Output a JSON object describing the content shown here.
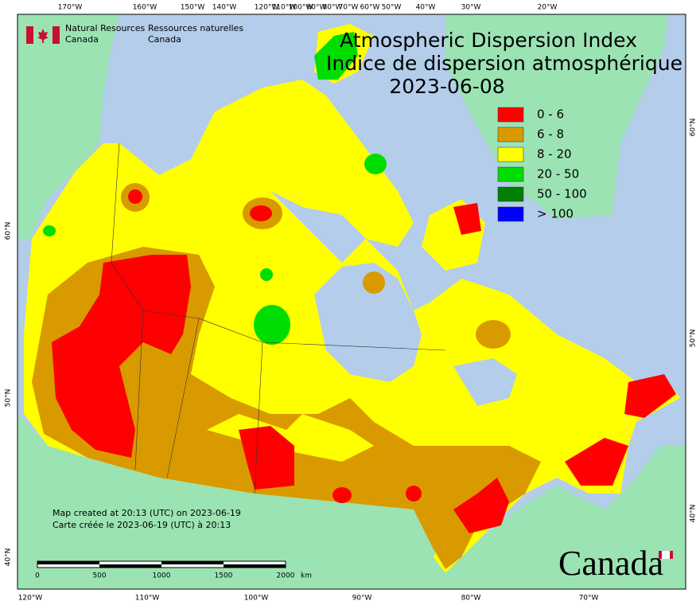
{
  "header": {
    "logo_en": [
      "Natural Resources",
      "Canada"
    ],
    "logo_fr": [
      "Ressources naturelles",
      "Canada"
    ]
  },
  "title": [
    "Atmospheric Dispersion Index",
    "Indice de dispersion atmosphérique"
  ],
  "date": "2023-06-08",
  "legend": [
    {
      "label": "0 - 6",
      "color": "#ff0000"
    },
    {
      "label": "6 - 8",
      "color": "#d99a00"
    },
    {
      "label": "8 - 20",
      "color": "#ffff00"
    },
    {
      "label": "20 - 50",
      "color": "#00dd00"
    },
    {
      "label": "50 - 100",
      "color": "#008000"
    },
    {
      "label": "> 100",
      "color": "#0000ff"
    }
  ],
  "created": [
    "Map created at 20:13 (UTC) on 2023-06-19",
    "Carte créée le 2023-06-19 (UTC) à 20:13"
  ],
  "scale": {
    "labels": [
      "0",
      "500",
      "1000",
      "1500",
      "2000"
    ],
    "unit": "km"
  },
  "wordmark": "Canada",
  "graticule": {
    "top": [
      "170°W",
      "160°W",
      "150°W",
      "140°W",
      "120°W",
      "110°W",
      "100°W",
      "90°W",
      "80°W",
      "70°W",
      "60°W",
      "50°W",
      "40°W",
      "30°W",
      "20°W"
    ],
    "bottom": [
      "120°W",
      "110°W",
      "100°W",
      "90°W",
      "80°W",
      "70°W"
    ],
    "left": [
      "60°N",
      "50°N",
      "40°N"
    ],
    "right": [
      "60°N",
      "50°N",
      "40°N"
    ]
  }
}
